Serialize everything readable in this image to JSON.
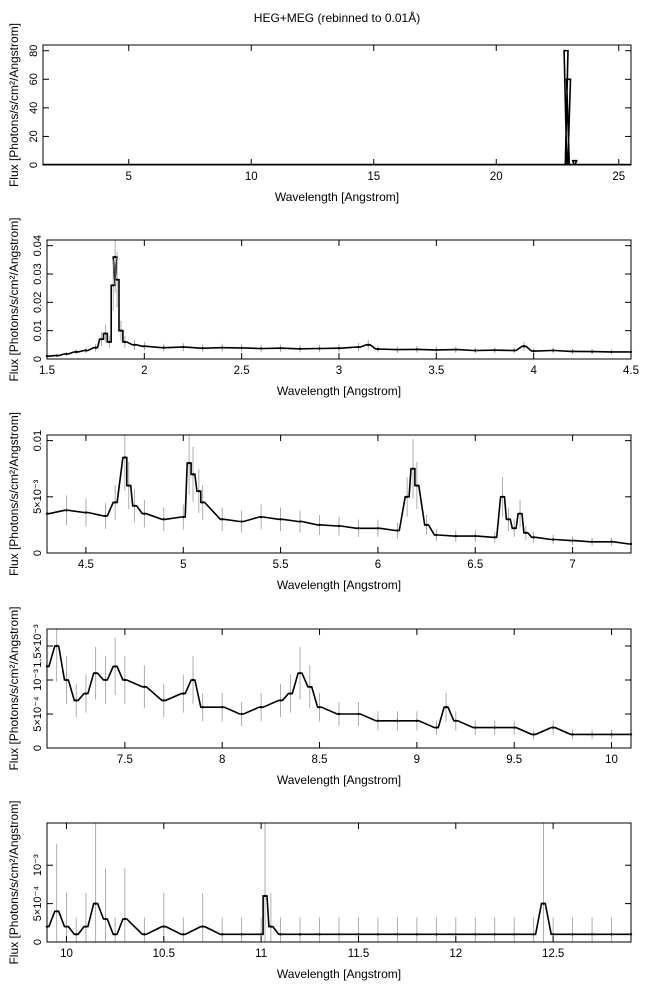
{
  "figure": {
    "title": "HEG+MEG (rebinned to 0.01Å)"
  },
  "chart_data": [
    {
      "type": "line",
      "xlabel": "Wavelength [Angstrom]",
      "ylabel": "Flux [Photons/s/cm²/Angstrom]",
      "xlim": [
        1.5,
        25.5
      ],
      "ylim": [
        0,
        84
      ],
      "xticks": [
        5,
        10,
        15,
        20,
        25
      ],
      "xticklabels": [
        "5",
        "10",
        "15",
        "20",
        "25"
      ],
      "yticks": [
        0,
        20,
        40,
        60,
        80
      ],
      "yticklabels": [
        "0",
        "20",
        "40",
        "60",
        "80"
      ],
      "grid": false,
      "series": [
        {
          "x": [
            1.5,
            3.0,
            5.0,
            8.0,
            10.0,
            12.0,
            15.0,
            18.0,
            20.0,
            21.0,
            22.0,
            22.8,
            22.85,
            22.9,
            22.95,
            23.0,
            23.05,
            23.1,
            23.2,
            23.3,
            23.4,
            24.0,
            25.0,
            25.5
          ],
          "y": [
            0.3,
            0.3,
            0.3,
            0.3,
            0.3,
            0.3,
            0.3,
            0.3,
            0.3,
            0.3,
            0.3,
            0.3,
            80,
            0.3,
            60,
            0.3,
            0.3,
            0.3,
            3,
            0.3,
            0.3,
            0.3,
            0.3,
            0.3
          ]
        }
      ]
    },
    {
      "type": "line",
      "xlabel": "Wavelength [Angstrom]",
      "ylabel": "Flux [Photons/s/cm²/Angstrom]",
      "xlim": [
        1.5,
        4.5
      ],
      "ylim": [
        0,
        0.042
      ],
      "xticks": [
        1.5,
        2,
        2.5,
        3,
        3.5,
        4,
        4.5
      ],
      "xticklabels": [
        "1.5",
        "2",
        "2.5",
        "3",
        "3.5",
        "4",
        "4.5"
      ],
      "yticks": [
        0,
        0.01,
        0.02,
        0.03,
        0.04
      ],
      "yticklabels": [
        "0",
        "0.01",
        "0.02",
        "0.03",
        "0.04"
      ],
      "grid": false,
      "series": [
        {
          "x": [
            1.5,
            1.55,
            1.6,
            1.65,
            1.7,
            1.75,
            1.78,
            1.8,
            1.82,
            1.84,
            1.85,
            1.86,
            1.88,
            1.9,
            1.95,
            2.0,
            2.1,
            2.2,
            2.3,
            2.4,
            2.5,
            2.6,
            2.7,
            2.8,
            2.9,
            3.0,
            3.1,
            3.15,
            3.2,
            3.3,
            3.4,
            3.5,
            3.6,
            3.7,
            3.8,
            3.9,
            3.95,
            4.0,
            4.1,
            4.2,
            4.3,
            4.4,
            4.5
          ],
          "y": [
            0.001,
            0.0012,
            0.0018,
            0.0025,
            0.003,
            0.004,
            0.007,
            0.009,
            0.006,
            0.026,
            0.036,
            0.028,
            0.01,
            0.006,
            0.005,
            0.0045,
            0.004,
            0.0042,
            0.0038,
            0.004,
            0.0039,
            0.0037,
            0.0038,
            0.0036,
            0.0037,
            0.0038,
            0.0042,
            0.005,
            0.0035,
            0.0033,
            0.0034,
            0.0032,
            0.0033,
            0.003,
            0.0031,
            0.003,
            0.0045,
            0.0028,
            0.003,
            0.0027,
            0.0026,
            0.0025,
            0.0025
          ]
        }
      ]
    },
    {
      "type": "line",
      "xlabel": "Wavelength [Angstrom]",
      "ylabel": "Flux [Photons/s/cm²/Angstrom]",
      "xlim": [
        4.3,
        7.3
      ],
      "ylim": [
        0,
        0.0105
      ],
      "xticks": [
        4.5,
        5,
        5.5,
        6,
        6.5,
        7
      ],
      "xticklabels": [
        "4.5",
        "5",
        "5.5",
        "6",
        "6.5",
        "7"
      ],
      "yticks": [
        0,
        0.005,
        0.01
      ],
      "yticklabels": [
        "0",
        "5×10⁻³",
        "0.01"
      ],
      "grid": false,
      "series": [
        {
          "x": [
            4.3,
            4.4,
            4.5,
            4.6,
            4.65,
            4.7,
            4.72,
            4.75,
            4.8,
            4.9,
            5.0,
            5.03,
            5.05,
            5.08,
            5.1,
            5.2,
            5.3,
            5.4,
            5.5,
            5.6,
            5.7,
            5.8,
            5.9,
            6.0,
            6.1,
            6.15,
            6.18,
            6.2,
            6.25,
            6.3,
            6.4,
            6.5,
            6.6,
            6.64,
            6.67,
            6.7,
            6.73,
            6.76,
            6.8,
            6.9,
            7.0,
            7.1,
            7.2,
            7.3
          ],
          "y": [
            0.0035,
            0.0038,
            0.0036,
            0.0033,
            0.0045,
            0.0085,
            0.006,
            0.0042,
            0.0035,
            0.003,
            0.0032,
            0.008,
            0.007,
            0.0055,
            0.0045,
            0.003,
            0.0028,
            0.0032,
            0.003,
            0.0028,
            0.0025,
            0.0024,
            0.0022,
            0.0022,
            0.002,
            0.005,
            0.0075,
            0.006,
            0.0025,
            0.0016,
            0.0015,
            0.0015,
            0.0014,
            0.005,
            0.003,
            0.0022,
            0.0035,
            0.0018,
            0.0014,
            0.0012,
            0.0011,
            0.001,
            0.001,
            0.0008
          ]
        }
      ]
    },
    {
      "type": "line",
      "xlabel": "Wavelength [Angstrom]",
      "ylabel": "Flux [Photons/s/cm²/Angstrom]",
      "xlim": [
        7.1,
        10.1
      ],
      "ylim": [
        0,
        0.00175
      ],
      "xticks": [
        7.5,
        8,
        8.5,
        9,
        9.5,
        10
      ],
      "xticklabels": [
        "7.5",
        "8",
        "8.5",
        "9",
        "9.5",
        "10"
      ],
      "yticks": [
        0,
        0.0005,
        0.001,
        0.0015
      ],
      "yticklabels": [
        "0",
        "5×10⁻⁴",
        "10⁻³",
        "1.5×10⁻³"
      ],
      "grid": false,
      "series": [
        {
          "x": [
            7.1,
            7.15,
            7.2,
            7.25,
            7.3,
            7.35,
            7.4,
            7.45,
            7.5,
            7.6,
            7.7,
            7.8,
            7.85,
            7.9,
            8.0,
            8.1,
            8.2,
            8.3,
            8.35,
            8.4,
            8.45,
            8.5,
            8.6,
            8.7,
            8.8,
            8.9,
            9.0,
            9.1,
            9.15,
            9.2,
            9.3,
            9.4,
            9.5,
            9.6,
            9.7,
            9.8,
            9.9,
            10.0,
            10.1
          ],
          "y": [
            0.0012,
            0.0015,
            0.001,
            0.0007,
            0.0008,
            0.0011,
            0.001,
            0.0012,
            0.001,
            0.0009,
            0.0007,
            0.0008,
            0.001,
            0.0006,
            0.0006,
            0.0005,
            0.0006,
            0.0007,
            0.0008,
            0.0011,
            0.0009,
            0.0006,
            0.0005,
            0.0005,
            0.0004,
            0.0004,
            0.0004,
            0.0003,
            0.0006,
            0.0004,
            0.0003,
            0.0003,
            0.0003,
            0.0002,
            0.0003,
            0.0002,
            0.0002,
            0.0002,
            0.0002
          ]
        }
      ]
    },
    {
      "type": "line",
      "xlabel": "Wavelength [Angstrom]",
      "ylabel": "Flux [Photons/s/cm²/Angstrom]",
      "xlim": [
        9.9,
        12.9
      ],
      "ylim": [
        0,
        0.00155
      ],
      "xticks": [
        10,
        10.5,
        11,
        11.5,
        12,
        12.5
      ],
      "xticklabels": [
        "10",
        "10.5",
        "11",
        "11.5",
        "12",
        "12.5"
      ],
      "yticks": [
        0,
        0.0005,
        0.001
      ],
      "yticklabels": [
        "0",
        "5×10⁻⁴",
        "10⁻³"
      ],
      "grid": false,
      "series": [
        {
          "x": [
            9.9,
            9.95,
            10.0,
            10.05,
            10.1,
            10.15,
            10.2,
            10.25,
            10.3,
            10.4,
            10.5,
            10.6,
            10.7,
            10.8,
            10.9,
            11.0,
            11.02,
            11.05,
            11.1,
            11.2,
            11.3,
            11.4,
            11.5,
            11.6,
            11.7,
            11.8,
            11.9,
            12.0,
            12.1,
            12.2,
            12.3,
            12.4,
            12.45,
            12.5,
            12.6,
            12.7,
            12.8,
            12.9
          ],
          "y": [
            0.0002,
            0.0004,
            0.0002,
            0.0001,
            0.0002,
            0.0005,
            0.0003,
            0.0001,
            0.0003,
            0.0001,
            0.0002,
            0.0001,
            0.0002,
            0.0001,
            0.0001,
            0.0001,
            0.0006,
            0.0002,
            0.0001,
            0.0001,
            0.0001,
            0.0001,
            0.0001,
            0.0001,
            0.0001,
            0.0001,
            0.0001,
            0.0001,
            0.0001,
            0.0001,
            0.0001,
            0.0001,
            0.0005,
            0.0001,
            0.0001,
            0.0001,
            0.0001,
            0.0001
          ]
        }
      ]
    }
  ]
}
